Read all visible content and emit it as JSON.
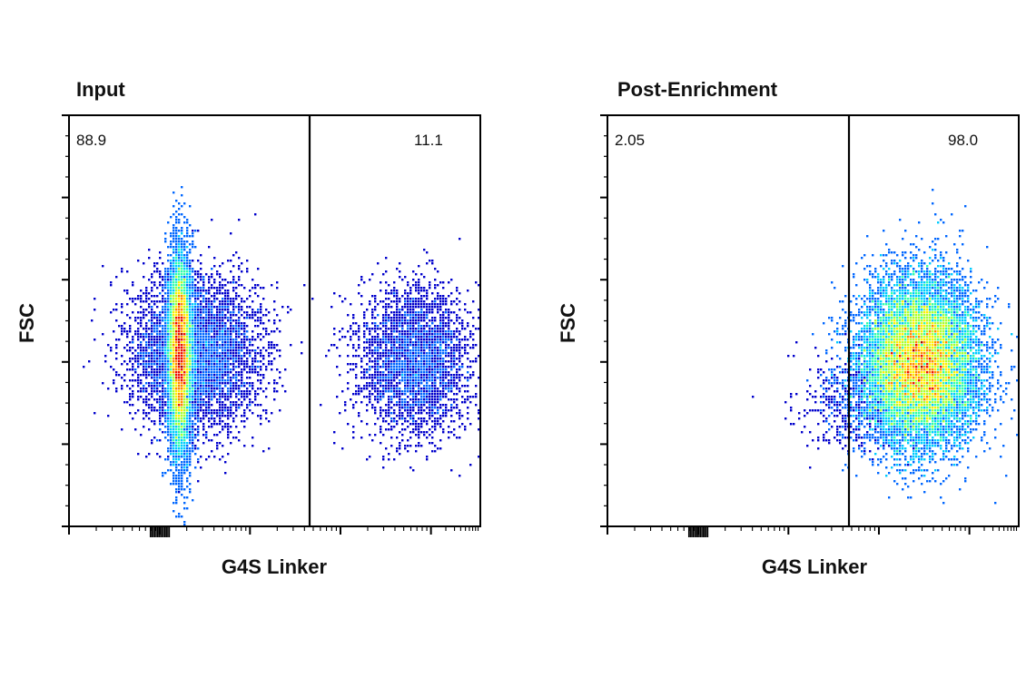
{
  "chart_data": [
    {
      "type": "scatter",
      "title": "Input",
      "xlabel": "G4S Linker",
      "ylabel": "FSC",
      "x_scale": "log",
      "grid": false,
      "gate_labels": {
        "left": "88.9",
        "right": "11.1"
      },
      "populations": [
        {
          "center": [
            0.27,
            0.42
          ],
          "spread": [
            0.014,
            0.12
          ],
          "count": 9000,
          "intensity": 1.0
        },
        {
          "center": [
            0.31,
            0.42
          ],
          "spread": [
            0.08,
            0.09
          ],
          "count": 5000,
          "intensity": 0.45
        },
        {
          "center": [
            0.84,
            0.4
          ],
          "spread": [
            0.07,
            0.09
          ],
          "count": 3200,
          "intensity": 0.4
        }
      ]
    },
    {
      "type": "scatter",
      "title": "Post-Enrichment",
      "xlabel": "G4S Linker",
      "ylabel": "FSC",
      "x_scale": "log",
      "grid": false,
      "gate_labels": {
        "left": "2.05",
        "right": "98.0"
      },
      "populations": [
        {
          "center": [
            0.76,
            0.4
          ],
          "spread": [
            0.07,
            0.1
          ],
          "count": 12000,
          "intensity": 1.0
        },
        {
          "center": [
            0.62,
            0.3
          ],
          "spread": [
            0.07,
            0.06
          ],
          "count": 600,
          "intensity": 0.25
        }
      ]
    }
  ],
  "colormap": [
    "#0000cc",
    "#0066ff",
    "#00ccff",
    "#33ffaa",
    "#aaff33",
    "#ffee00",
    "#ff8800",
    "#ee1100",
    "#aa0000"
  ]
}
